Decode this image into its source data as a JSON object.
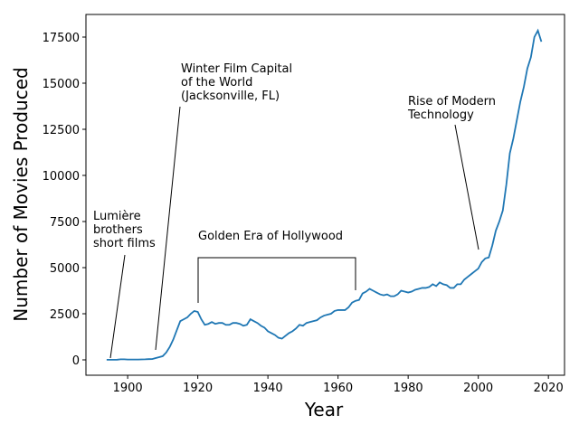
{
  "chart_data": {
    "type": "line",
    "x_label": "Year",
    "y_label": "Number of Movies Produced",
    "x": [
      1894,
      1895,
      1896,
      1897,
      1898,
      1899,
      1900,
      1901,
      1902,
      1903,
      1904,
      1905,
      1906,
      1907,
      1908,
      1909,
      1910,
      1911,
      1912,
      1913,
      1914,
      1915,
      1916,
      1917,
      1918,
      1919,
      1920,
      1921,
      1922,
      1923,
      1924,
      1925,
      1926,
      1927,
      1928,
      1929,
      1930,
      1931,
      1932,
      1933,
      1934,
      1935,
      1936,
      1937,
      1938,
      1939,
      1940,
      1941,
      1942,
      1943,
      1944,
      1945,
      1946,
      1947,
      1948,
      1949,
      1950,
      1951,
      1952,
      1953,
      1954,
      1955,
      1956,
      1957,
      1958,
      1959,
      1960,
      1961,
      1962,
      1963,
      1964,
      1965,
      1966,
      1967,
      1968,
      1969,
      1970,
      1971,
      1972,
      1973,
      1974,
      1975,
      1976,
      1977,
      1978,
      1979,
      1980,
      1981,
      1982,
      1983,
      1984,
      1985,
      1986,
      1987,
      1988,
      1989,
      1990,
      1991,
      1992,
      1993,
      1994,
      1995,
      1996,
      1997,
      1998,
      1999,
      2000,
      2001,
      2002,
      2003,
      2004,
      2005,
      2006,
      2007,
      2008,
      2009,
      2010,
      2011,
      2012,
      2013,
      2014,
      2015,
      2016,
      2017,
      2018
    ],
    "values": [
      5,
      5,
      5,
      10,
      30,
      30,
      20,
      20,
      20,
      20,
      25,
      30,
      40,
      45,
      100,
      150,
      200,
      400,
      700,
      1100,
      1600,
      2100,
      2200,
      2300,
      2500,
      2650,
      2600,
      2200,
      1900,
      1950,
      2050,
      1950,
      2000,
      2000,
      1900,
      1900,
      2000,
      2000,
      1950,
      1850,
      1900,
      2200,
      2100,
      2000,
      1850,
      1750,
      1550,
      1450,
      1350,
      1200,
      1150,
      1300,
      1450,
      1550,
      1700,
      1900,
      1850,
      2000,
      2050,
      2100,
      2150,
      2300,
      2400,
      2450,
      2500,
      2650,
      2700,
      2700,
      2700,
      2850,
      3100,
      3200,
      3250,
      3600,
      3700,
      3850,
      3750,
      3650,
      3550,
      3500,
      3550,
      3450,
      3450,
      3550,
      3750,
      3700,
      3650,
      3700,
      3800,
      3850,
      3900,
      3900,
      3950,
      4100,
      4000,
      4200,
      4100,
      4050,
      3900,
      3900,
      4100,
      4100,
      4350,
      4500,
      4650,
      4800,
      4950,
      5300,
      5500,
      5550,
      6200,
      7000,
      7500,
      8100,
      9500,
      11200,
      12000,
      13000,
      14000,
      14800,
      15800,
      16400,
      17500,
      17850,
      17250
    ],
    "color": "#1f77b4",
    "xlim": [
      1888.1,
      2024.6
    ],
    "ylim": [
      -833,
      18725
    ],
    "xticks": [
      1900,
      1920,
      1940,
      1960,
      1980,
      2000,
      2020
    ],
    "yticks": [
      0,
      2500,
      5000,
      7500,
      10000,
      12500,
      15000,
      17500
    ],
    "annotations": [
      [
        "Lumière",
        "brothers",
        "short films"
      ],
      [
        "Winter Film Capital",
        "of the World",
        "(Jacksonville, FL)"
      ],
      [
        "Golden Era of Hollywood"
      ],
      [
        "Rise of Modern",
        "Technology"
      ]
    ]
  }
}
